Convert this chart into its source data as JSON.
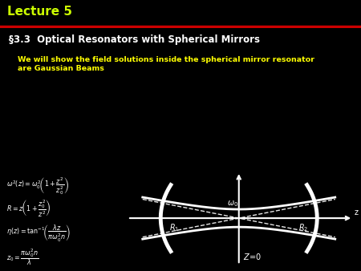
{
  "title": "Lecture 5",
  "title_color": "#CCFF00",
  "bg_color": "#000000",
  "teal_bg": "#00CCCC",
  "blue_bg": "#0000EE",
  "gray_bg": "#888888",
  "red_line_color": "#CC0000",
  "section_title": "§3.3  Optical Resonators with Spherical Mirrors",
  "subtitle": "We will show the field solutions inside the spherical mirror resonator\nare Gaussian Beams",
  "subtitle_color": "#FFFF00",
  "white": "#FFFFFF",
  "formula_text_color": "#000000"
}
